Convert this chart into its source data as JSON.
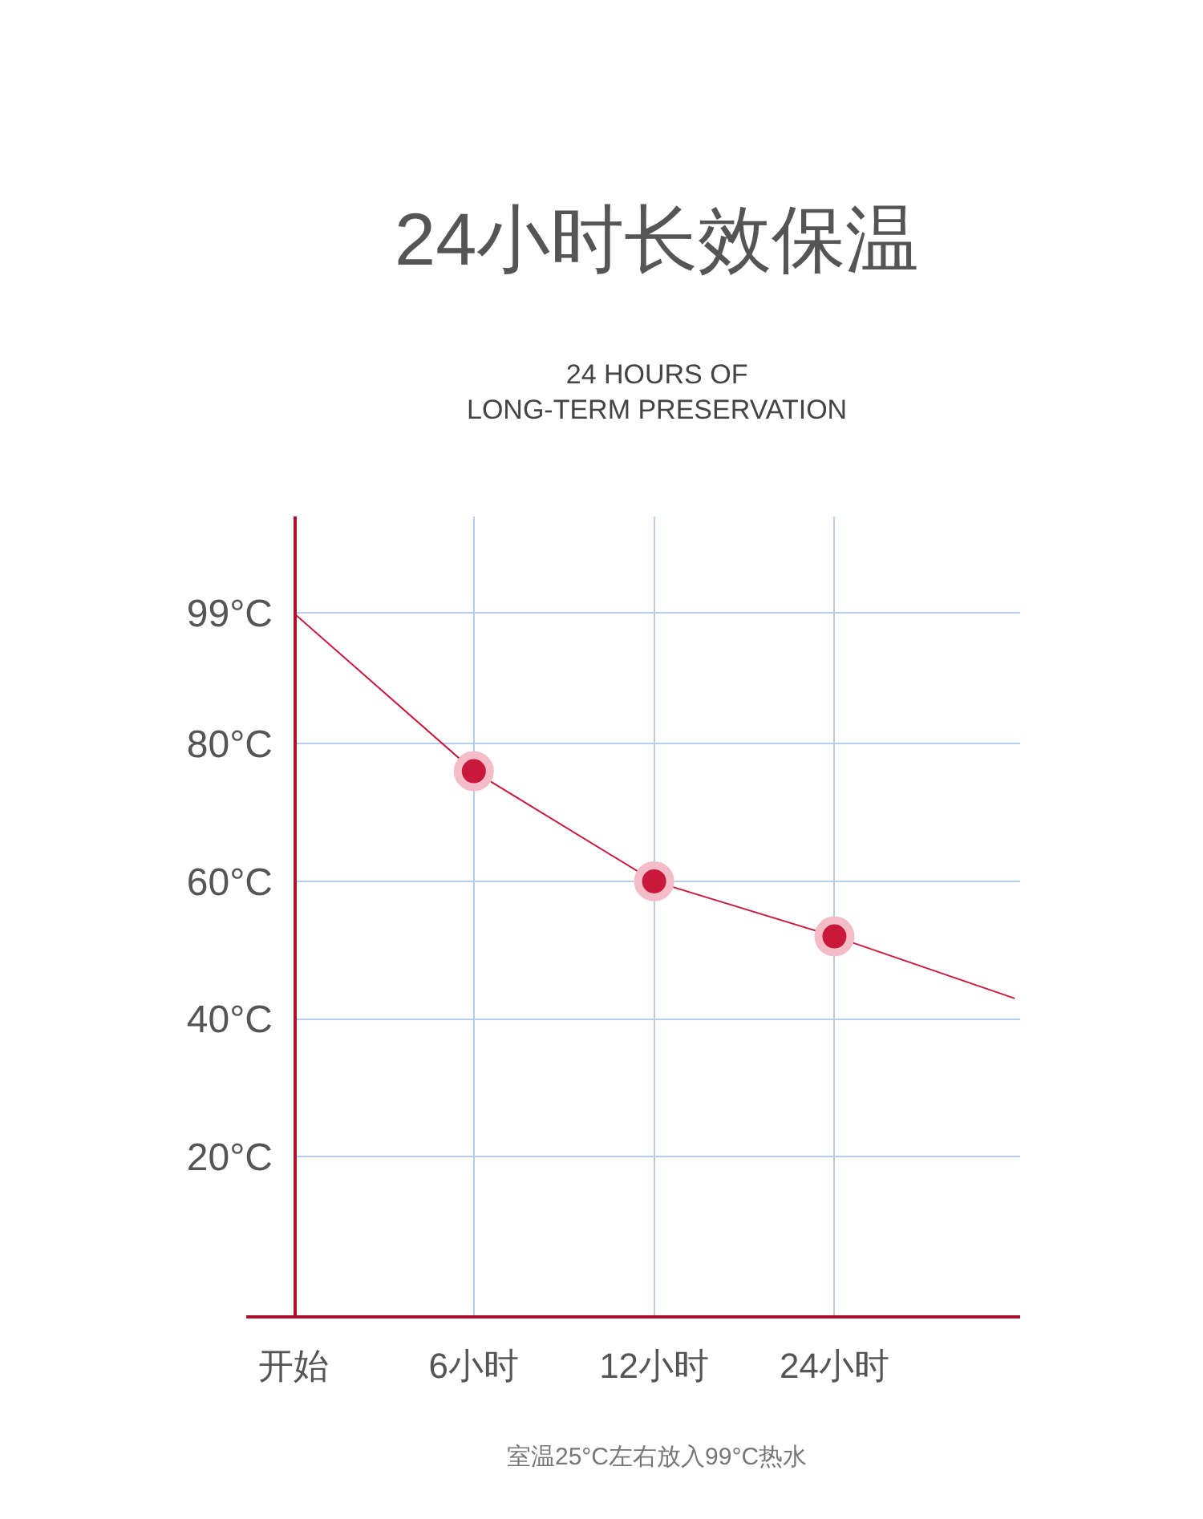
{
  "chart_data": {
    "type": "line",
    "title": "24小时长效保温",
    "subtitle": "24 HOURS OF\nLONG-TERM PRESERVATION",
    "categories": [
      "开始",
      "6小时",
      "12小时",
      "24小时",
      null
    ],
    "series": [
      {
        "color": "#c8193c",
        "marker": "none",
        "values": [
          99,
          76,
          60,
          52,
          43
        ]
      },
      {
        "type": "scatter",
        "color": "#c8193c",
        "marker": "circle",
        "values": [
          null,
          76,
          60,
          52,
          null
        ]
      }
    ],
    "ylim": [
      -3.5,
      113
    ],
    "yticks": [
      {
        "value": 20,
        "label": "20°C"
      },
      {
        "value": 40,
        "label": "40°C"
      },
      {
        "value": 60,
        "label": "60°C"
      },
      {
        "value": 80,
        "label": "80°C"
      },
      {
        "value": 99,
        "label": "99°C"
      }
    ],
    "grid": true,
    "annotations": [
      "室温25°C左右放入99°C热水"
    ]
  }
}
